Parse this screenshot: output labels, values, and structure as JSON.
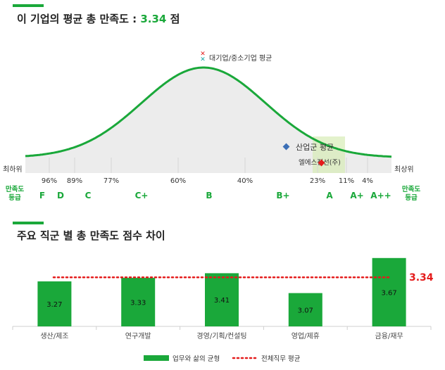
{
  "section1": {
    "title_prefix": "이 기업의 평균 총 만족도 : ",
    "score": "3.34",
    "title_suffix": " 점"
  },
  "distribution": {
    "marker_legend_label": "대기업/중소기업 평균",
    "industry_label": "산업군 평균",
    "company_label": "엘에스전선(주)",
    "left_end_label": "최하위",
    "right_end_label": "최상위",
    "percentiles": [
      "96%",
      "89%",
      "77%",
      "60%",
      "40%",
      "23%",
      "11%",
      "4%"
    ],
    "grade_header_left": "만족도\n등급",
    "grade_header_right": "만족도\n등급",
    "grades": [
      "F",
      "D",
      "C",
      "C+",
      "B",
      "B+",
      "A",
      "A+",
      "A++"
    ],
    "colors": {
      "accent": "#1aa83a",
      "curve_fill": "#ececec",
      "industry_marker": "#3b6fb6",
      "company_marker": "#e41b1b",
      "highlight": "#d7ecb6"
    }
  },
  "section2": {
    "title": "주요 직군 별 총 만족도 점수 차이"
  },
  "chart_data": {
    "type": "bar",
    "categories": [
      "생산/제조",
      "연구개발",
      "경영/기획/컨설팅",
      "영업/제휴",
      "금융/재무"
    ],
    "series": [
      {
        "name": "업무와 삶의 균형",
        "values": [
          3.27,
          3.33,
          3.41,
          3.07,
          3.67
        ],
        "color": "#1aa83a"
      }
    ],
    "reference_line": {
      "name": "전체직무 평균",
      "value": 3.34,
      "label": "3.34",
      "color": "#e41b1b",
      "style": "dotted"
    },
    "ylim": [
      2.5,
      3.8
    ],
    "show_bar_labels": true
  }
}
